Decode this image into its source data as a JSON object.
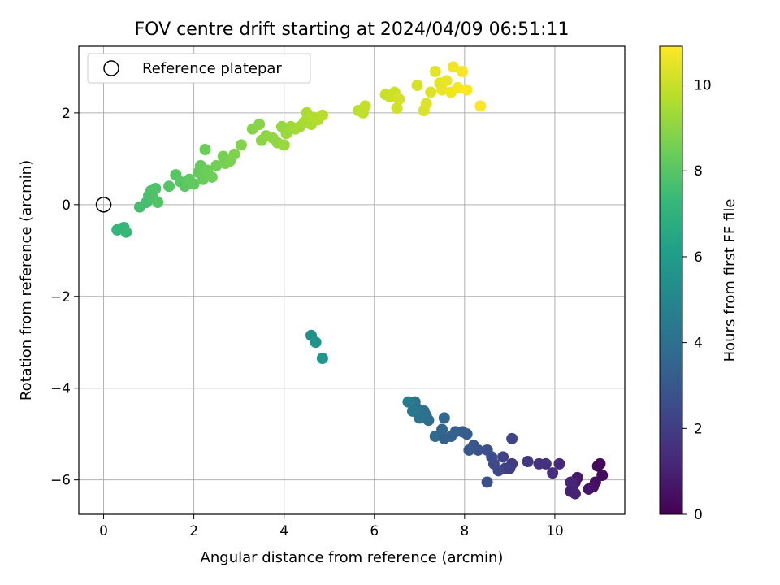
{
  "chart_data": {
    "type": "scatter",
    "title": "FOV centre drift starting at 2024/04/09 06:51:11",
    "xlabel": "Angular distance from reference (arcmin)",
    "ylabel": "Rotation from reference (arcmin)",
    "xlim": [
      -0.55,
      11.55
    ],
    "ylim": [
      -6.75,
      3.45
    ],
    "xticks": [
      0,
      2,
      4,
      6,
      8,
      10
    ],
    "yticks": [
      -6,
      -4,
      -2,
      0,
      2
    ],
    "xtick_labels": [
      "0",
      "2",
      "4",
      "6",
      "8",
      "10"
    ],
    "ytick_labels": [
      "−6",
      "−4",
      "−2",
      "0",
      "2"
    ],
    "grid": true,
    "legend": {
      "position": "top-left",
      "entries": [
        "Reference platepar"
      ]
    },
    "reference_point": {
      "x": 0,
      "y": 0
    },
    "colorbar": {
      "label": "Hours from first FF file",
      "range": [
        0,
        10.9
      ],
      "ticks": [
        0,
        2,
        4,
        6,
        8,
        10
      ],
      "tick_labels": [
        "0",
        "2",
        "4",
        "6",
        "8",
        "10"
      ],
      "colormap": "viridis",
      "colors": [
        "#440154",
        "#482878",
        "#3e4989",
        "#31688e",
        "#26828e",
        "#1f9e89",
        "#35b779",
        "#6ece58",
        "#b5de2b",
        "#fde725"
      ]
    },
    "series": [
      {
        "points": [
          [
            11.0,
            -5.65,
            0.2
          ],
          [
            11.05,
            -5.9,
            0.35
          ],
          [
            10.95,
            -5.7,
            0.25
          ],
          [
            10.9,
            -6.05,
            0.45
          ],
          [
            10.85,
            -6.15,
            0.5
          ],
          [
            10.75,
            -6.2,
            0.6
          ],
          [
            10.5,
            -5.95,
            0.75
          ],
          [
            10.45,
            -6.05,
            0.85
          ],
          [
            10.4,
            -6.15,
            0.95
          ],
          [
            10.35,
            -6.25,
            1.0
          ],
          [
            10.45,
            -6.3,
            1.05
          ],
          [
            10.35,
            -6.05,
            1.15
          ],
          [
            10.1,
            -5.65,
            1.3
          ],
          [
            9.95,
            -5.85,
            1.45
          ],
          [
            9.8,
            -5.65,
            1.55
          ],
          [
            9.65,
            -5.65,
            1.65
          ],
          [
            9.4,
            -5.6,
            1.8
          ],
          [
            9.05,
            -5.65,
            1.9
          ],
          [
            9.0,
            -5.75,
            2.0
          ],
          [
            8.9,
            -5.75,
            2.1
          ],
          [
            8.85,
            -5.5,
            2.2
          ],
          [
            9.05,
            -5.1,
            2.25
          ],
          [
            8.75,
            -5.8,
            2.35
          ],
          [
            8.65,
            -5.65,
            2.45
          ],
          [
            8.6,
            -5.5,
            2.55
          ],
          [
            8.5,
            -5.35,
            2.65
          ],
          [
            8.5,
            -6.05,
            2.7
          ],
          [
            8.3,
            -5.35,
            2.8
          ],
          [
            8.2,
            -5.25,
            2.9
          ],
          [
            8.1,
            -5.35,
            3.0
          ],
          [
            8.05,
            -5.0,
            3.1
          ],
          [
            7.95,
            -4.95,
            3.2
          ],
          [
            7.8,
            -4.95,
            3.3
          ],
          [
            7.7,
            -5.05,
            3.35
          ],
          [
            7.55,
            -5.1,
            3.45
          ],
          [
            7.5,
            -4.9,
            3.55
          ],
          [
            7.55,
            -4.65,
            3.65
          ],
          [
            7.35,
            -5.05,
            3.75
          ],
          [
            7.2,
            -4.7,
            3.85
          ],
          [
            7.15,
            -4.6,
            3.95
          ],
          [
            7.1,
            -4.5,
            4.05
          ],
          [
            7.0,
            -4.65,
            4.15
          ],
          [
            6.95,
            -4.45,
            4.25
          ],
          [
            6.9,
            -4.3,
            4.3
          ],
          [
            6.85,
            -4.5,
            4.4
          ],
          [
            6.75,
            -4.3,
            4.5
          ],
          [
            4.6,
            -2.85,
            5.4
          ],
          [
            4.7,
            -3.0,
            5.55
          ],
          [
            4.85,
            -3.35,
            5.7
          ],
          [
            0.3,
            -0.55,
            7.15
          ],
          [
            0.45,
            -0.5,
            7.2
          ],
          [
            0.5,
            -0.6,
            7.25
          ],
          [
            0.8,
            -0.05,
            7.6
          ],
          [
            0.95,
            0.05,
            7.65
          ],
          [
            1.0,
            0.2,
            7.7
          ],
          [
            1.05,
            0.3,
            7.75
          ],
          [
            1.1,
            0.15,
            7.8
          ],
          [
            1.15,
            0.35,
            7.85
          ],
          [
            1.2,
            0.05,
            7.9
          ],
          [
            1.45,
            0.4,
            7.95
          ],
          [
            1.6,
            0.65,
            8.0
          ],
          [
            1.7,
            0.5,
            8.05
          ],
          [
            1.8,
            0.4,
            8.1
          ],
          [
            1.9,
            0.55,
            8.15
          ],
          [
            2.0,
            0.45,
            8.2
          ],
          [
            2.1,
            0.7,
            8.25
          ],
          [
            2.15,
            0.85,
            8.3
          ],
          [
            2.2,
            0.55,
            8.35
          ],
          [
            2.25,
            1.2,
            8.4
          ],
          [
            2.3,
            0.75,
            8.45
          ],
          [
            2.4,
            0.6,
            8.5
          ],
          [
            2.5,
            0.85,
            8.55
          ],
          [
            2.65,
            1.05,
            8.6
          ],
          [
            2.7,
            0.9,
            8.65
          ],
          [
            2.8,
            0.95,
            8.7
          ],
          [
            2.9,
            1.1,
            8.75
          ],
          [
            3.05,
            1.3,
            8.8
          ],
          [
            3.3,
            1.65,
            8.85
          ],
          [
            3.45,
            1.75,
            8.9
          ],
          [
            3.5,
            1.4,
            8.95
          ],
          [
            3.6,
            1.5,
            9.0
          ],
          [
            3.75,
            1.45,
            9.05
          ],
          [
            3.85,
            1.35,
            9.1
          ],
          [
            3.95,
            1.7,
            9.15
          ],
          [
            4.0,
            1.3,
            9.2
          ],
          [
            4.05,
            1.55,
            9.25
          ],
          [
            4.15,
            1.7,
            9.3
          ],
          [
            4.25,
            1.65,
            9.35
          ],
          [
            4.35,
            1.7,
            9.4
          ],
          [
            4.45,
            1.8,
            9.45
          ],
          [
            4.5,
            2.0,
            9.5
          ],
          [
            4.6,
            1.75,
            9.55
          ],
          [
            4.65,
            1.9,
            9.6
          ],
          [
            4.75,
            1.85,
            9.65
          ],
          [
            4.85,
            1.95,
            9.7
          ],
          [
            5.65,
            2.05,
            9.8
          ],
          [
            5.75,
            2.0,
            9.85
          ],
          [
            5.8,
            2.15,
            9.9
          ],
          [
            6.25,
            2.4,
            10.0
          ],
          [
            6.35,
            2.35,
            10.05
          ],
          [
            6.45,
            2.45,
            10.1
          ],
          [
            6.5,
            2.1,
            10.15
          ],
          [
            6.55,
            2.3,
            10.2
          ],
          [
            6.95,
            2.6,
            10.25
          ],
          [
            7.1,
            2.05,
            10.3
          ],
          [
            7.15,
            2.2,
            10.35
          ],
          [
            7.25,
            2.45,
            10.4
          ],
          [
            7.35,
            2.9,
            10.45
          ],
          [
            7.45,
            2.65,
            10.5
          ],
          [
            7.5,
            2.5,
            10.55
          ],
          [
            7.6,
            2.7,
            10.6
          ],
          [
            7.7,
            2.45,
            10.65
          ],
          [
            7.75,
            3.0,
            10.7
          ],
          [
            7.85,
            2.55,
            10.75
          ],
          [
            7.95,
            2.9,
            10.8
          ],
          [
            8.05,
            2.5,
            10.85
          ],
          [
            8.35,
            2.15,
            10.9
          ]
        ]
      }
    ]
  }
}
